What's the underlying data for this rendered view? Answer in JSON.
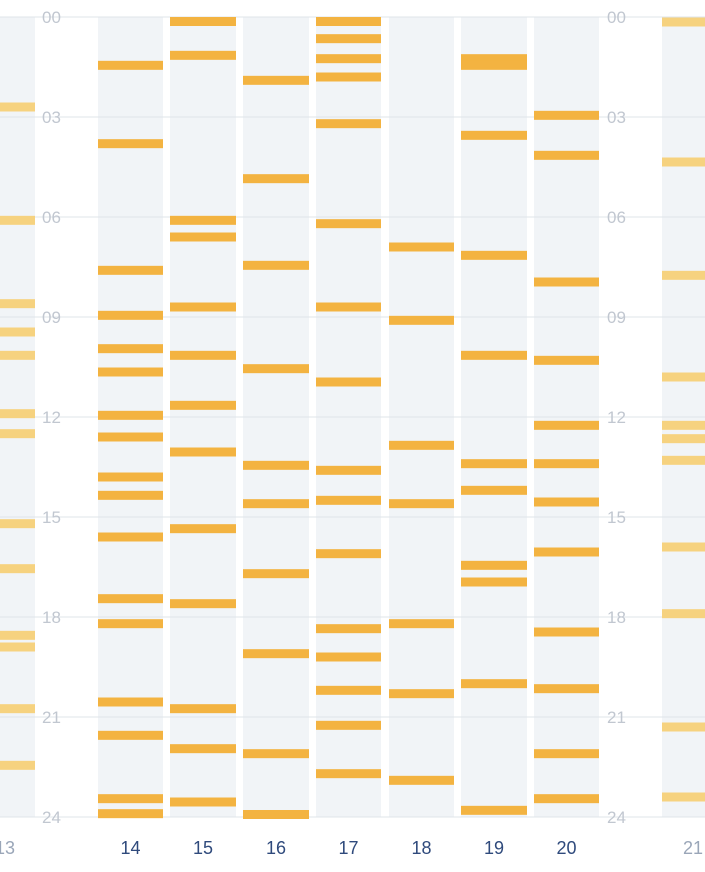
{
  "chart_data": {
    "type": "heatmap",
    "description_axis": "day columns with hour-of-day vertical axis; each bar marks an event time",
    "x": {
      "tick_labels": [
        "13",
        "14",
        "15",
        "16",
        "17",
        "18",
        "19",
        "20",
        "21"
      ],
      "partially_visible": [
        "13",
        "21"
      ]
    },
    "y": {
      "range": [
        0,
        24
      ],
      "tick_labels": [
        "00",
        "03",
        "06",
        "09",
        "12",
        "15",
        "18",
        "21",
        "24"
      ],
      "direction": "top-to-bottom"
    },
    "grid": true,
    "colors": {
      "event": "#f3b341",
      "event_faded": "#f6d27f",
      "column_bg": "#f1f4f7",
      "gridline": "#dfe4ea"
    },
    "days": [
      {
        "label": "13",
        "faded": true,
        "events": [
          2.7,
          6.1,
          8.6,
          9.45,
          10.15,
          11.9,
          12.5,
          15.2,
          16.55,
          18.55,
          18.9,
          20.75,
          22.45
        ]
      },
      {
        "label": "14",
        "faded": false,
        "events": [
          1.45,
          3.8,
          7.6,
          8.95,
          9.95,
          10.65,
          11.95,
          12.6,
          13.8,
          14.35,
          15.6,
          17.45,
          18.2,
          20.55,
          21.55,
          23.45,
          23.9
        ]
      },
      {
        "label": "15",
        "faded": false,
        "events": [
          0.02,
          1.15,
          6.1,
          6.6,
          8.7,
          10.15,
          11.65,
          13.05,
          15.35,
          17.6,
          20.75,
          21.95,
          23.55
        ]
      },
      {
        "label": "16",
        "faded": false,
        "events": [
          1.9,
          4.85,
          7.45,
          10.55,
          13.45,
          14.6,
          16.7,
          19.1,
          22.1,
          23.98
        ]
      },
      {
        "label": "17",
        "faded": false,
        "events": [
          0.1,
          0.65,
          1.25,
          1.8,
          3.2,
          6.2,
          8.7,
          10.95,
          13.6,
          14.5,
          16.1,
          18.35,
          19.2,
          20.2,
          21.25,
          22.7
        ]
      },
      {
        "label": "18",
        "faded": false,
        "events": [
          6.9,
          9.1,
          12.85,
          14.6,
          18.2,
          20.3,
          22.9
        ]
      },
      {
        "label": "19",
        "faded": false,
        "events": [
          1.25,
          1.45,
          3.55,
          7.15,
          10.15,
          13.4,
          14.2,
          16.45,
          16.95,
          20.0,
          23.8
        ]
      },
      {
        "label": "20",
        "faded": false,
        "events": [
          2.95,
          4.15,
          7.95,
          10.3,
          12.25,
          13.4,
          14.55,
          16.05,
          18.45,
          20.15,
          22.1,
          23.45
        ]
      },
      {
        "label": "21",
        "faded": true,
        "events": [
          0.15,
          4.35,
          7.75,
          10.8,
          12.25,
          12.65,
          13.3,
          15.9,
          17.9,
          21.3,
          23.4
        ]
      }
    ]
  }
}
